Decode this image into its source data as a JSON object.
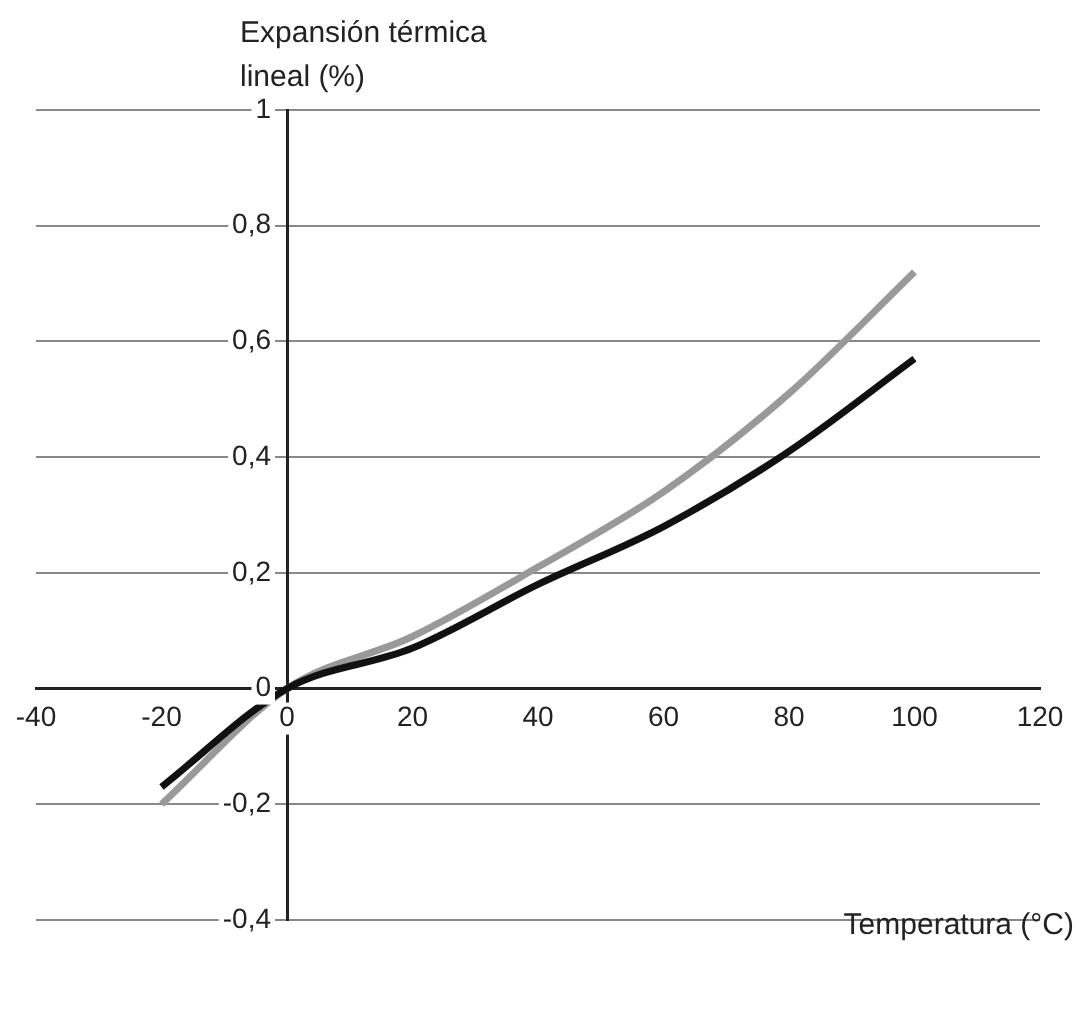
{
  "chart_data": {
    "type": "line",
    "xlabel": "Temperatura (°C)",
    "ylabel": "Expansión térmica\nlineal (%)",
    "x": [
      -20,
      0,
      20,
      40,
      60,
      80,
      100
    ],
    "series": [
      {
        "color": "#111111",
        "values": [
          -0.17,
          0,
          0.07,
          0.18,
          0.28,
          0.41,
          0.57
        ]
      },
      {
        "color": "#999999",
        "values": [
          -0.2,
          0,
          0.09,
          0.21,
          0.34,
          0.51,
          0.72
        ]
      }
    ],
    "xlim": [
      -40,
      120
    ],
    "xticks": [
      -40,
      -20,
      0,
      20,
      40,
      60,
      80,
      100,
      120
    ],
    "ylim": [
      -0.4,
      1
    ],
    "yticks": [
      {
        "value": -0.4,
        "label": "-0,4"
      },
      {
        "value": -0.2,
        "label": "-0,2"
      },
      {
        "value": 0,
        "label": "0"
      },
      {
        "value": 0.2,
        "label": "0,2"
      },
      {
        "value": 0.4,
        "label": "0,4"
      },
      {
        "value": 0.6,
        "label": "0,6"
      },
      {
        "value": 0.8,
        "label": "0,8"
      },
      {
        "value": 1,
        "label": "1"
      }
    ],
    "grid": "y",
    "marker": "none",
    "line_style": "solid"
  }
}
